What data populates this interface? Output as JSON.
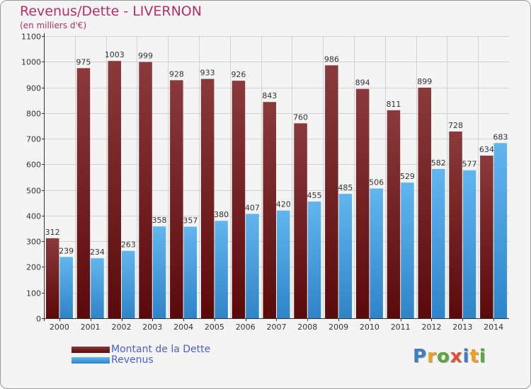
{
  "header": {
    "title": "Revenus/Dette - LIVERNON",
    "subtitle": "(en milliers d'€)"
  },
  "chart_data": {
    "type": "bar",
    "title": "Revenus/Dette - LIVERNON",
    "subtitle": "(en milliers d'€)",
    "xlabel": "",
    "ylabel": "",
    "categories": [
      "2000",
      "2001",
      "2002",
      "2003",
      "2004",
      "2005",
      "2006",
      "2007",
      "2008",
      "2009",
      "2010",
      "2011",
      "2012",
      "2013",
      "2014"
    ],
    "series": [
      {
        "name": "Montant de la Dette",
        "values": [
          312,
          975,
          1003,
          999,
          928,
          933,
          926,
          843,
          760,
          986,
          894,
          811,
          899,
          728,
          634
        ],
        "color_top": "#8a3a3a",
        "color_bottom": "#5a0a0a"
      },
      {
        "name": "Revenus",
        "values": [
          239,
          234,
          263,
          358,
          357,
          380,
          407,
          420,
          455,
          485,
          506,
          529,
          582,
          577,
          683
        ],
        "color_top": "#62b6ee",
        "color_bottom": "#2f84c8"
      }
    ],
    "ylim": [
      0,
      1100
    ],
    "yticks": [
      0,
      100,
      200,
      300,
      400,
      500,
      600,
      700,
      800,
      900,
      1000,
      1100
    ],
    "grid": true,
    "legend_position": "bottom-left"
  },
  "legend": [
    {
      "label": "Montant de la Dette",
      "color": "#6e1818"
    },
    {
      "label": "Revenus",
      "color": "#4aa3e0"
    }
  ],
  "logo": {
    "text": "Proxiti",
    "colors": [
      "#3e7fc4",
      "#f0a020",
      "#59a83a",
      "#e0503a",
      "#3e7fc4",
      "#f0a020",
      "#59a83a"
    ]
  }
}
